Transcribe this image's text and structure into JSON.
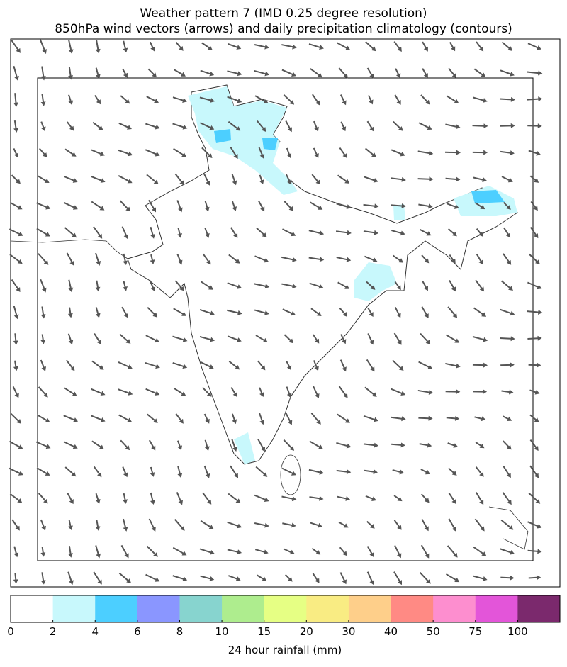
{
  "title": [
    "Weather pattern 7 (IMD 0.25 degree resolution)",
    "850hPa wind vectors (arrows) and daily precipitation climatology (contours)"
  ],
  "colorbar": {
    "label": "24 hour rainfall (mm)",
    "ticks": [
      0,
      2,
      4,
      6,
      8,
      10,
      15,
      20,
      30,
      40,
      50,
      75,
      100
    ],
    "colors": [
      "#ffffff",
      "#c8f8fc",
      "#4ccfff",
      "#8a96ff",
      "#87d4cf",
      "#aeed8e",
      "#e6ff84",
      "#f9ec83",
      "#fecf8a",
      "#ff8a84",
      "#fd8ecf",
      "#e355d9",
      "#7b296d"
    ]
  }
}
